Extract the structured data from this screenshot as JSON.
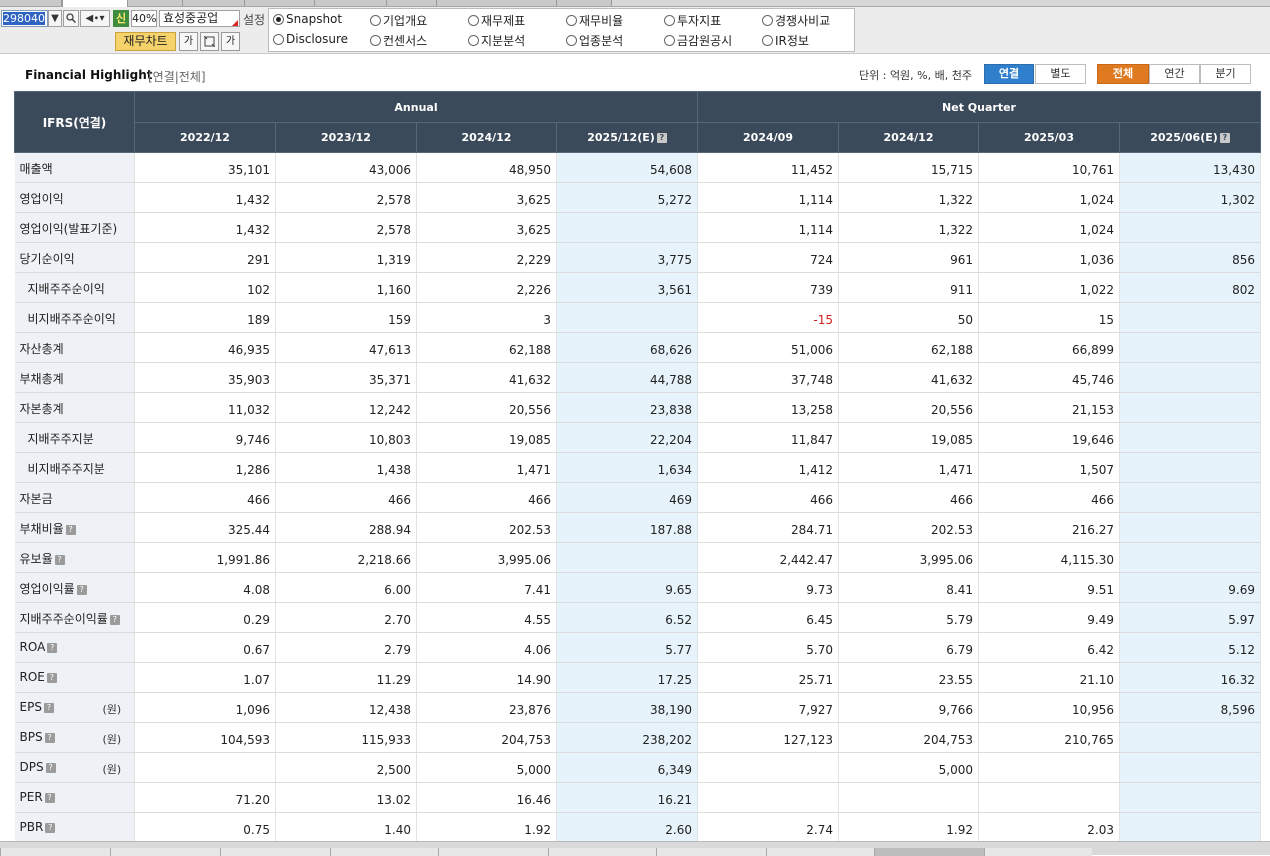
{
  "toolbar": {
    "stock_code": "298040",
    "sin_badge": "신",
    "percent": "40%",
    "company": "효성중공업",
    "setting": "설정",
    "chart_button": "재무차트",
    "small_btn_1": "가",
    "small_btn_3": "가"
  },
  "radios": [
    {
      "label": "Snapshot",
      "checked": true
    },
    {
      "label": "기업개요",
      "checked": false
    },
    {
      "label": "재무제표",
      "checked": false
    },
    {
      "label": "재무비율",
      "checked": false
    },
    {
      "label": "투자지표",
      "checked": false
    },
    {
      "label": "경쟁사비교",
      "checked": false
    },
    {
      "label": "Disclosure",
      "checked": false
    },
    {
      "label": "컨센서스",
      "checked": false
    },
    {
      "label": "지분분석",
      "checked": false
    },
    {
      "label": "업종분석",
      "checked": false
    },
    {
      "label": "금감원공시",
      "checked": false
    },
    {
      "label": "IR정보",
      "checked": false
    }
  ],
  "header": {
    "title": "Financial Highlight",
    "subtitle": "[연결|전체]",
    "unit": "단위 : 억원, %, 배, 천주",
    "seg_consolidated": "연결",
    "seg_separate": "별도",
    "seg_all": "전체",
    "seg_annual": "연간",
    "seg_quarter": "분기"
  },
  "table": {
    "corner": "IFRS(연결)",
    "group_annual": "Annual",
    "group_quarter": "Net Quarter",
    "columns": [
      "2022/12",
      "2023/12",
      "2024/12",
      "2025/12(E)",
      "2024/09",
      "2024/12",
      "2025/03",
      "2025/06(E)"
    ],
    "won": "(원)",
    "rows": [
      {
        "name": "매출액",
        "values": [
          "35,101",
          "43,006",
          "48,950",
          "54,608",
          "11,452",
          "15,715",
          "10,761",
          "13,430"
        ]
      },
      {
        "name": "영업이익",
        "values": [
          "1,432",
          "2,578",
          "3,625",
          "5,272",
          "1,114",
          "1,322",
          "1,024",
          "1,302"
        ]
      },
      {
        "name": "영업이익(발표기준)",
        "values": [
          "1,432",
          "2,578",
          "3,625",
          "",
          "1,114",
          "1,322",
          "1,024",
          ""
        ]
      },
      {
        "name": "당기순이익",
        "values": [
          "291",
          "1,319",
          "2,229",
          "3,775",
          "724",
          "961",
          "1,036",
          "856"
        ]
      },
      {
        "name": "지배주주순이익",
        "values": [
          "102",
          "1,160",
          "2,226",
          "3,561",
          "739",
          "911",
          "1,022",
          "802"
        ]
      },
      {
        "name": "비지배주주순이익",
        "values": [
          "189",
          "159",
          "3",
          "",
          "-15",
          "50",
          "15",
          ""
        ]
      },
      {
        "name": "자산총계",
        "values": [
          "46,935",
          "47,613",
          "62,188",
          "68,626",
          "51,006",
          "62,188",
          "66,899",
          ""
        ]
      },
      {
        "name": "부채총계",
        "values": [
          "35,903",
          "35,371",
          "41,632",
          "44,788",
          "37,748",
          "41,632",
          "45,746",
          ""
        ]
      },
      {
        "name": "자본총계",
        "values": [
          "11,032",
          "12,242",
          "20,556",
          "23,838",
          "13,258",
          "20,556",
          "21,153",
          ""
        ]
      },
      {
        "name": "지배주주지분",
        "values": [
          "9,746",
          "10,803",
          "19,085",
          "22,204",
          "11,847",
          "19,085",
          "19,646",
          ""
        ]
      },
      {
        "name": "비지배주주지분",
        "values": [
          "1,286",
          "1,438",
          "1,471",
          "1,634",
          "1,412",
          "1,471",
          "1,507",
          ""
        ]
      },
      {
        "name": "자본금",
        "values": [
          "466",
          "466",
          "466",
          "469",
          "466",
          "466",
          "466",
          ""
        ]
      },
      {
        "name": "부채비율",
        "values": [
          "325.44",
          "288.94",
          "202.53",
          "187.88",
          "284.71",
          "202.53",
          "216.27",
          ""
        ]
      },
      {
        "name": "유보율",
        "values": [
          "1,991.86",
          "2,218.66",
          "3,995.06",
          "",
          "2,442.47",
          "3,995.06",
          "4,115.30",
          ""
        ]
      },
      {
        "name": "영업이익률",
        "values": [
          "4.08",
          "6.00",
          "7.41",
          "9.65",
          "9.73",
          "8.41",
          "9.51",
          "9.69"
        ]
      },
      {
        "name": "지배주주순이익률",
        "values": [
          "0.29",
          "2.70",
          "4.55",
          "6.52",
          "6.45",
          "5.79",
          "9.49",
          "5.97"
        ]
      },
      {
        "name": "ROA",
        "values": [
          "0.67",
          "2.79",
          "4.06",
          "5.77",
          "5.70",
          "6.79",
          "6.42",
          "5.12"
        ]
      },
      {
        "name": "ROE",
        "values": [
          "1.07",
          "11.29",
          "14.90",
          "17.25",
          "25.71",
          "23.55",
          "21.10",
          "16.32"
        ]
      },
      {
        "name": "EPS",
        "values": [
          "1,096",
          "12,438",
          "23,876",
          "38,190",
          "7,927",
          "9,766",
          "10,956",
          "8,596"
        ]
      },
      {
        "name": "BPS",
        "values": [
          "104,593",
          "115,933",
          "204,753",
          "238,202",
          "127,123",
          "204,753",
          "210,765",
          ""
        ]
      },
      {
        "name": "DPS",
        "values": [
          "",
          "2,500",
          "5,000",
          "6,349",
          "",
          "5,000",
          "",
          ""
        ]
      },
      {
        "name": "PER",
        "values": [
          "71.20",
          "13.02",
          "16.46",
          "16.21",
          "",
          "",
          "",
          ""
        ]
      },
      {
        "name": "PBR",
        "values": [
          "0.75",
          "1.40",
          "1.92",
          "2.60",
          "2.74",
          "1.92",
          "2.03",
          ""
        ]
      }
    ]
  },
  "colors": {
    "header_bg": "#3b4a5a",
    "estimate_bg": "#e6f3fa",
    "negative": "#d32222",
    "seg_blue": "#2f7fcc",
    "seg_orange": "#e07a21"
  }
}
